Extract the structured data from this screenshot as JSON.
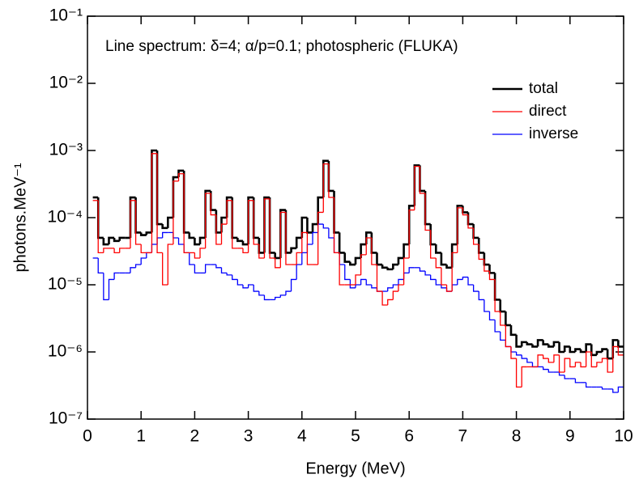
{
  "chart_data": {
    "type": "histogram",
    "annotation": "Line spectrum: δ=4; α/p=0.1; photospheric (FLUKA)",
    "xlabel": "Energy (MeV)",
    "ylabel": "photons.MeV⁻¹",
    "xlim": [
      0,
      10
    ],
    "xticks": [
      0,
      1,
      2,
      3,
      4,
      5,
      6,
      7,
      8,
      9,
      10
    ],
    "ylim": [
      1e-07,
      0.1
    ],
    "ylog": true,
    "yticks": [
      {
        "value": 1e-07,
        "label": "10⁻⁷"
      },
      {
        "value": 1e-06,
        "label": "10⁻⁶"
      },
      {
        "value": 1e-05,
        "label": "10⁻⁵"
      },
      {
        "value": 0.0001,
        "label": "10⁻⁴"
      },
      {
        "value": 0.001,
        "label": "10⁻³"
      },
      {
        "value": 0.01,
        "label": "10⁻²"
      },
      {
        "value": 0.1,
        "label": "10⁻¹"
      }
    ],
    "legend": "upper right",
    "bins": [
      0.1,
      0.2,
      0.3,
      0.4,
      0.5,
      0.6,
      0.7,
      0.8,
      0.9,
      1.0,
      1.1,
      1.2,
      1.3,
      1.4,
      1.5,
      1.6,
      1.7,
      1.8,
      1.9,
      2.0,
      2.1,
      2.2,
      2.3,
      2.4,
      2.5,
      2.6,
      2.7,
      2.8,
      2.9,
      3.0,
      3.1,
      3.2,
      3.3,
      3.4,
      3.5,
      3.6,
      3.7,
      3.8,
      3.9,
      4.0,
      4.1,
      4.2,
      4.3,
      4.4,
      4.5,
      4.6,
      4.7,
      4.8,
      4.9,
      5.0,
      5.1,
      5.2,
      5.3,
      5.4,
      5.5,
      5.6,
      5.7,
      5.8,
      5.9,
      6.0,
      6.1,
      6.2,
      6.3,
      6.4,
      6.5,
      6.6,
      6.7,
      6.8,
      6.9,
      7.0,
      7.1,
      7.2,
      7.3,
      7.4,
      7.5,
      7.6,
      7.7,
      7.8,
      7.9,
      8.0,
      8.1,
      8.2,
      8.3,
      8.4,
      8.5,
      8.6,
      8.7,
      8.8,
      8.9,
      9.0,
      9.1,
      9.2,
      9.3,
      9.4,
      9.5,
      9.6,
      9.7,
      9.8,
      9.9,
      10.0
    ],
    "series": [
      {
        "name": "total",
        "color": "#000000",
        "width": 2.6,
        "values": [
          0.0002,
          5e-05,
          4e-05,
          5e-05,
          4.5e-05,
          5e-05,
          5e-05,
          0.0002,
          6e-05,
          5.5e-05,
          6e-05,
          0.001,
          8e-05,
          7e-05,
          0.0001,
          0.0004,
          0.0005,
          6e-05,
          5e-05,
          4e-05,
          5e-05,
          0.00025,
          0.00013,
          6e-05,
          0.0001,
          0.0002,
          5e-05,
          4.5e-05,
          4e-05,
          0.0002,
          5e-05,
          3e-05,
          0.0002,
          3e-05,
          2.5e-05,
          0.00013,
          3e-05,
          3.5e-05,
          5e-05,
          0.0001,
          6e-05,
          8e-05,
          0.0002,
          0.0007,
          0.00025,
          6e-05,
          3e-05,
          2.2e-05,
          2e-05,
          2.5e-05,
          4e-05,
          6e-05,
          3e-05,
          2e-05,
          1.8e-05,
          1.7e-05,
          2e-05,
          2.5e-05,
          4e-05,
          0.00015,
          0.0006,
          0.00025,
          8e-05,
          4e-05,
          3e-05,
          2e-05,
          1.8e-05,
          4e-05,
          0.00015,
          0.00012,
          8e-05,
          5e-05,
          3e-05,
          2e-05,
          1.5e-05,
          6e-06,
          4e-06,
          2.5e-06,
          1.8e-06,
          1.2e-06,
          1.4e-06,
          1.3e-06,
          1.2e-06,
          1.5e-06,
          1.3e-06,
          1.2e-06,
          1.4e-06,
          1e-06,
          1.2e-06,
          1e-06,
          1.1e-06,
          1e-06,
          1.3e-06,
          9e-07,
          1e-06,
          1.1e-06,
          8e-07,
          1.5e-06,
          1.2e-06
        ]
      },
      {
        "name": "inverse",
        "color": "#0000ff",
        "width": 1.3,
        "values": [
          2.5e-05,
          1.5e-05,
          6e-06,
          1.2e-05,
          1.5e-05,
          1.5e-05,
          1.5e-05,
          1.8e-05,
          2e-05,
          2.5e-05,
          3e-05,
          4e-05,
          5e-05,
          6e-05,
          6e-05,
          5e-05,
          4e-05,
          3e-05,
          2e-05,
          1.5e-05,
          1.5e-05,
          2e-05,
          2e-05,
          1.8e-05,
          1.5e-05,
          1.4e-05,
          1.2e-05,
          1e-05,
          9e-06,
          1e-05,
          8e-06,
          7e-06,
          6e-06,
          6e-06,
          6.5e-06,
          7e-06,
          8e-06,
          1.2e-05,
          2e-05,
          3e-05,
          4e-05,
          6e-05,
          8e-05,
          7e-05,
          5e-05,
          3e-05,
          2e-05,
          1.2e-05,
          9e-06,
          1e-05,
          1.2e-05,
          1e-05,
          9e-06,
          8e-06,
          8e-06,
          9e-06,
          1e-05,
          1.2e-05,
          1.5e-05,
          1.8e-05,
          1.8e-05,
          1.6e-05,
          1.4e-05,
          1.2e-05,
          1e-05,
          9e-06,
          8e-06,
          1e-05,
          1.2e-05,
          1.3e-05,
          1e-05,
          8e-06,
          6e-06,
          4e-06,
          3e-06,
          2e-06,
          1.5e-06,
          1.2e-06,
          1e-06,
          9e-07,
          8e-07,
          7e-07,
          6e-07,
          6e-07,
          5.5e-07,
          5e-07,
          5e-07,
          4.5e-07,
          4e-07,
          4e-07,
          3.5e-07,
          3.5e-07,
          3e-07,
          3e-07,
          3e-07,
          2.8e-07,
          2.8e-07,
          2.5e-07,
          3e-07
        ]
      },
      {
        "name": "direct",
        "color": "#ff0000",
        "width": 1.3,
        "values": [
          0.00018,
          3e-05,
          3.5e-05,
          3.5e-05,
          3e-05,
          3.5e-05,
          3.5e-05,
          0.00018,
          4e-05,
          3e-05,
          3e-05,
          0.0009,
          3e-05,
          1e-05,
          4e-05,
          0.00035,
          0.00045,
          3e-05,
          3e-05,
          2.5e-05,
          3.5e-05,
          0.00023,
          0.00011,
          4e-05,
          8e-05,
          0.00018,
          3.5e-05,
          3.5e-05,
          3e-05,
          0.00018,
          4e-05,
          2.5e-05,
          0.00019,
          2.5e-05,
          1.8e-05,
          0.00012,
          2e-05,
          2e-05,
          3e-05,
          6e-05,
          2e-05,
          2e-05,
          0.00012,
          0.00063,
          0.0002,
          3e-05,
          1e-05,
          1e-05,
          1e-05,
          1.4e-05,
          2.8e-05,
          5e-05,
          2e-05,
          8e-06,
          5e-06,
          6e-06,
          8e-06,
          1e-05,
          2.5e-05,
          0.00013,
          0.00058,
          0.00023,
          6.5e-05,
          2.5e-05,
          1.8e-05,
          1e-05,
          8e-06,
          3e-05,
          0.00014,
          0.00011,
          7e-05,
          4e-05,
          2.4e-05,
          1.6e-05,
          1.2e-05,
          4e-06,
          2.5e-06,
          1.2e-06,
          8e-07,
          3e-07,
          6e-07,
          6e-07,
          6e-07,
          9e-07,
          8e-07,
          7e-07,
          9e-07,
          5e-07,
          8e-07,
          6e-07,
          7e-07,
          6e-07,
          1e-06,
          6e-07,
          7e-07,
          8e-07,
          5e-07,
          1.2e-06,
          9e-07
        ]
      }
    ]
  }
}
